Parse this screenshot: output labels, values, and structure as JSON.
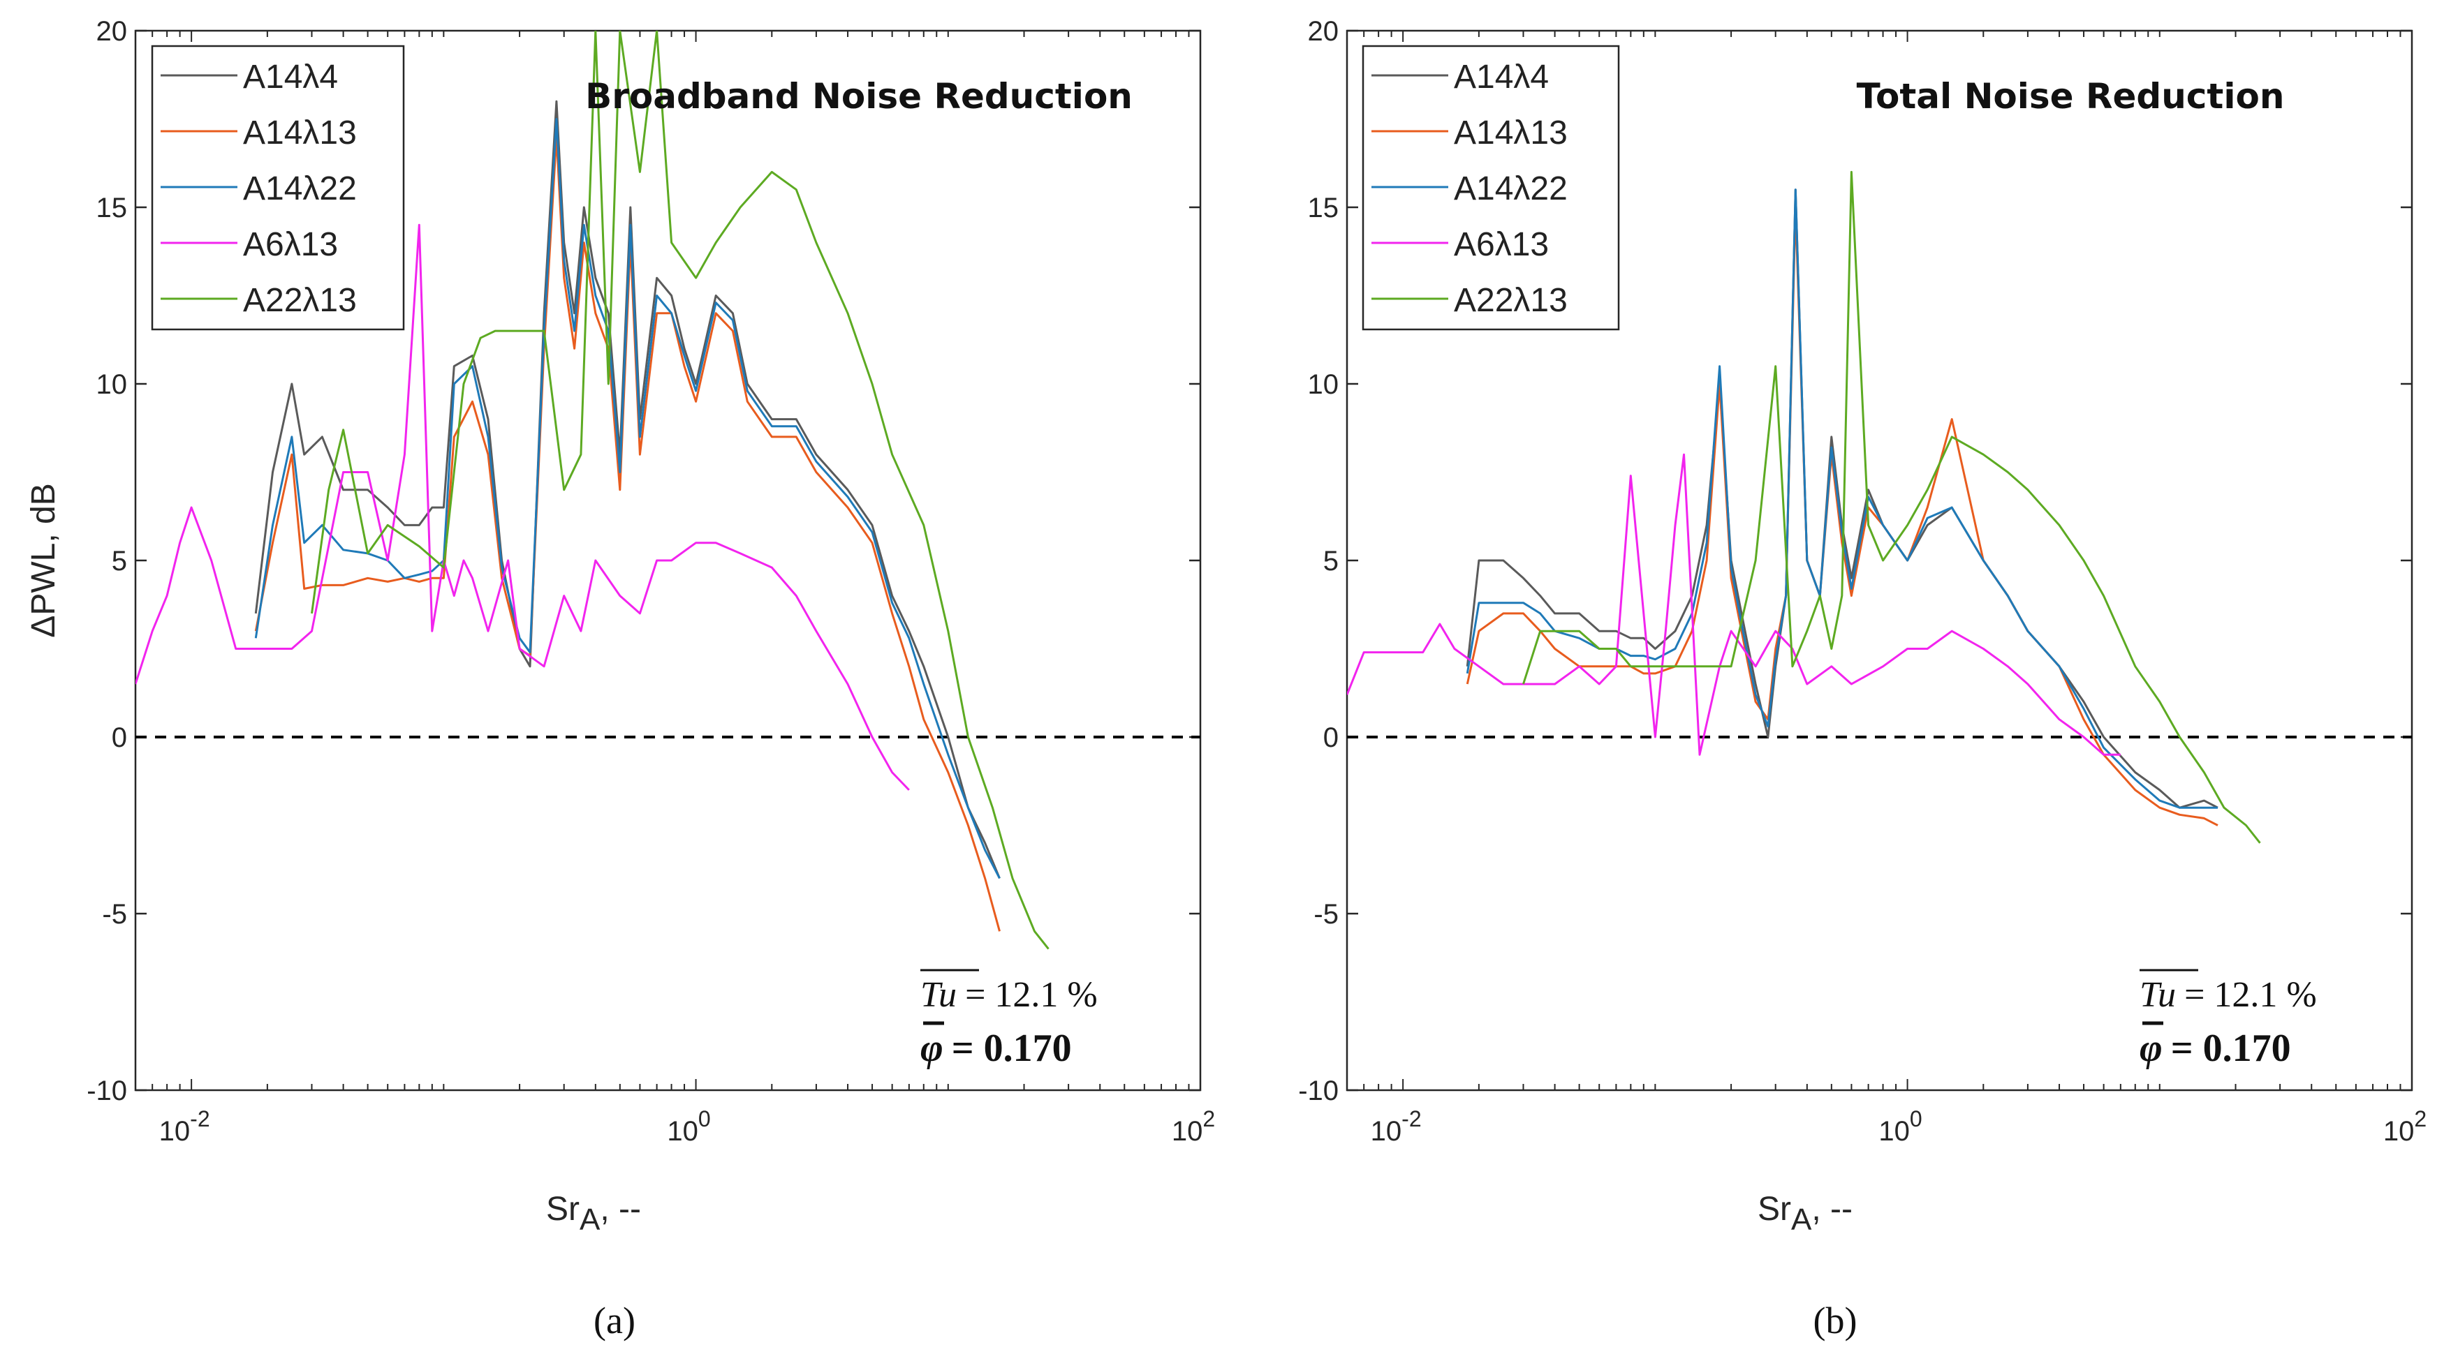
{
  "chart_data": [
    {
      "type": "line",
      "panel": "a",
      "title": "Broadband Noise Reduction",
      "caption": "(a)",
      "xlabel": "Sr",
      "xlabel_sub": "A",
      "xlabel_suffix": ", --",
      "ylabel": "ΔPWL, dB",
      "xscale": "log",
      "xlim": [
        0.006,
        100
      ],
      "ylim": [
        -10,
        20
      ],
      "yticks": [
        -10,
        -5,
        0,
        5,
        10,
        15,
        20
      ],
      "ytick_labels": [
        "-10",
        "-5",
        "0",
        "5",
        "10",
        "15",
        "20"
      ],
      "xticks": [
        {
          "base": "10",
          "exp": "-2",
          "value": 0.01
        },
        {
          "base": "10",
          "exp": "0",
          "value": 1
        },
        {
          "base": "10",
          "exp": "2",
          "value": 100
        }
      ],
      "reference_line": {
        "y": 0,
        "style": "dashed"
      },
      "legend_position": "top-left",
      "annotation": {
        "tu_symbol": "Tu",
        "tu_value": "= 12.1 %",
        "phi_symbol": "φ",
        "phi_value": "= 0.170"
      },
      "series": [
        {
          "name": "A14λ4",
          "color": "#5a5a5a",
          "x": [
            0.018,
            0.021,
            0.025,
            0.028,
            0.033,
            0.04,
            0.05,
            0.06,
            0.07,
            0.08,
            0.09,
            0.1,
            0.11,
            0.13,
            0.15,
            0.17,
            0.2,
            0.22,
            0.25,
            0.28,
            0.3,
            0.33,
            0.36,
            0.4,
            0.45,
            0.5,
            0.55,
            0.6,
            0.7,
            0.8,
            0.9,
            1.0,
            1.2,
            1.4,
            1.6,
            2.0,
            2.5,
            3.0,
            4.0,
            5.0,
            6.0,
            7.0,
            8.0,
            10.0,
            12.0,
            14.0,
            16.0
          ],
          "y": [
            3.5,
            7.5,
            10,
            8,
            8.5,
            7,
            7,
            6.5,
            6,
            6,
            6.5,
            6.5,
            10.5,
            10.8,
            9,
            5,
            2.5,
            2,
            12,
            18,
            14,
            12,
            15,
            13,
            12,
            8,
            15,
            9,
            13,
            12.5,
            11,
            10,
            12.5,
            12,
            10,
            9,
            9,
            8,
            7,
            6,
            4,
            3,
            2,
            0,
            -2,
            -3,
            -4
          ]
        },
        {
          "name": "A14λ13",
          "color": "#e85c1e",
          "x": [
            0.018,
            0.021,
            0.025,
            0.028,
            0.033,
            0.04,
            0.05,
            0.06,
            0.07,
            0.08,
            0.09,
            0.1,
            0.11,
            0.13,
            0.15,
            0.17,
            0.2,
            0.22,
            0.25,
            0.28,
            0.3,
            0.33,
            0.36,
            0.4,
            0.45,
            0.5,
            0.55,
            0.6,
            0.7,
            0.8,
            0.9,
            1.0,
            1.2,
            1.4,
            1.6,
            2.0,
            2.5,
            3.0,
            4.0,
            5.0,
            6.0,
            7.0,
            8.0,
            10.0,
            12.0,
            14.0,
            16.0
          ],
          "y": [
            3,
            5.5,
            8,
            4.2,
            4.3,
            4.3,
            4.5,
            4.4,
            4.5,
            4.4,
            4.5,
            4.5,
            8.5,
            9.5,
            8,
            4.5,
            2.5,
            2.3,
            11,
            17,
            13,
            11,
            14,
            12,
            11,
            7,
            14,
            8,
            12,
            12,
            10.5,
            9.5,
            12,
            11.5,
            9.5,
            8.5,
            8.5,
            7.5,
            6.5,
            5.5,
            3.5,
            2,
            0.5,
            -1,
            -2.5,
            -4,
            -5.5
          ]
        },
        {
          "name": "A14λ22",
          "color": "#1f7ab8",
          "x": [
            0.018,
            0.021,
            0.025,
            0.028,
            0.033,
            0.04,
            0.05,
            0.06,
            0.07,
            0.08,
            0.09,
            0.1,
            0.11,
            0.13,
            0.15,
            0.17,
            0.2,
            0.22,
            0.25,
            0.28,
            0.3,
            0.33,
            0.36,
            0.4,
            0.45,
            0.5,
            0.55,
            0.6,
            0.7,
            0.8,
            0.9,
            1.0,
            1.2,
            1.4,
            1.6,
            2.0,
            2.5,
            3.0,
            4.0,
            5.0,
            6.0,
            7.0,
            8.0,
            10.0,
            12.0,
            14.0,
            16.0
          ],
          "y": [
            2.8,
            6,
            8.5,
            5.5,
            6,
            5.3,
            5.2,
            5,
            4.5,
            4.6,
            4.7,
            5,
            10,
            10.5,
            8.5,
            4.8,
            2.8,
            2.4,
            11.5,
            17.5,
            13.5,
            11.5,
            14.5,
            12.5,
            11.5,
            7.5,
            14.5,
            8.5,
            12.5,
            12,
            10.8,
            9.8,
            12.3,
            11.8,
            9.8,
            8.8,
            8.8,
            7.8,
            6.8,
            5.8,
            3.8,
            2.8,
            1.5,
            -0.5,
            -2,
            -3.2,
            -4
          ]
        },
        {
          "name": "A6λ13",
          "color": "#f224ee",
          "x": [
            0.006,
            0.007,
            0.008,
            0.009,
            0.01,
            0.012,
            0.015,
            0.02,
            0.025,
            0.03,
            0.04,
            0.05,
            0.06,
            0.07,
            0.08,
            0.09,
            0.1,
            0.11,
            0.12,
            0.13,
            0.15,
            0.18,
            0.2,
            0.25,
            0.3,
            0.35,
            0.4,
            0.5,
            0.6,
            0.7,
            0.8,
            1.0,
            1.2,
            1.5,
            2.0,
            2.5,
            3.0,
            4.0,
            5.0,
            6.0,
            7.0
          ],
          "y": [
            1.5,
            3,
            4,
            5.5,
            6.5,
            5,
            2.5,
            2.5,
            2.5,
            3,
            7.5,
            7.5,
            5,
            8,
            14.5,
            3,
            5,
            4,
            5,
            4.5,
            3,
            5,
            2.5,
            2,
            4,
            3,
            5,
            4,
            3.5,
            5,
            5,
            5.5,
            5.5,
            5.2,
            4.8,
            4,
            3,
            1.5,
            0,
            -1,
            -1.5
          ]
        },
        {
          "name": "A22λ13",
          "color": "#5daa22",
          "x": [
            0.03,
            0.035,
            0.04,
            0.05,
            0.06,
            0.08,
            0.1,
            0.12,
            0.14,
            0.16,
            0.2,
            0.25,
            0.3,
            0.35,
            0.4,
            0.45,
            0.5,
            0.6,
            0.7,
            0.8,
            1.0,
            1.2,
            1.5,
            2.0,
            2.5,
            3.0,
            4.0,
            5.0,
            6.0,
            8.0,
            10.0,
            12.0,
            15.0,
            18.0,
            22.0,
            25.0
          ],
          "y": [
            3.5,
            7,
            8.7,
            5.2,
            6,
            5.4,
            4.8,
            10,
            11.3,
            11.5,
            11.5,
            11.5,
            7,
            8,
            20,
            10,
            20,
            16,
            20,
            14,
            13,
            14,
            15,
            16,
            15.5,
            14,
            12,
            10,
            8,
            6,
            3,
            0,
            -2,
            -4,
            -5.5,
            -6
          ]
        }
      ]
    },
    {
      "type": "line",
      "panel": "b",
      "title": "Total Noise Reduction",
      "caption": "(b)",
      "xlabel": "Sr",
      "xlabel_sub": "A",
      "xlabel_suffix": ", --",
      "ylabel": "",
      "xscale": "log",
      "xlim": [
        0.006,
        100
      ],
      "ylim": [
        -10,
        20
      ],
      "yticks": [
        -10,
        -5,
        0,
        5,
        10,
        15,
        20
      ],
      "ytick_labels": [
        "-10",
        "-5",
        "0",
        "5",
        "10",
        "15",
        "20"
      ],
      "xticks": [
        {
          "base": "10",
          "exp": "-2",
          "value": 0.01
        },
        {
          "base": "10",
          "exp": "0",
          "value": 1
        },
        {
          "base": "10",
          "exp": "2",
          "value": 100
        }
      ],
      "reference_line": {
        "y": 0,
        "style": "dashed"
      },
      "legend_position": "top-left",
      "annotation": {
        "tu_symbol": "Tu",
        "tu_value": "= 12.1 %",
        "phi_symbol": "φ",
        "phi_value": "= 0.170"
      },
      "series": [
        {
          "name": "A14λ4",
          "color": "#5a5a5a",
          "x": [
            0.018,
            0.02,
            0.025,
            0.03,
            0.035,
            0.04,
            0.05,
            0.06,
            0.07,
            0.08,
            0.09,
            0.1,
            0.12,
            0.14,
            0.16,
            0.18,
            0.2,
            0.22,
            0.25,
            0.28,
            0.3,
            0.33,
            0.36,
            0.4,
            0.45,
            0.5,
            0.55,
            0.6,
            0.7,
            0.8,
            1.0,
            1.2,
            1.5,
            2.0,
            2.5,
            3.0,
            4.0,
            5.0,
            6.0,
            8.0,
            10.0,
            12.0,
            15.0,
            17.0
          ],
          "y": [
            2,
            5,
            5,
            4.5,
            4,
            3.5,
            3.5,
            3,
            3,
            2.8,
            2.8,
            2.5,
            3,
            4,
            6,
            10,
            5,
            3.5,
            1.5,
            0,
            2,
            4,
            15.5,
            5,
            4,
            8.5,
            6,
            4.5,
            7,
            6,
            5,
            6,
            6.5,
            5,
            4,
            3,
            2,
            1,
            0,
            -1,
            -1.5,
            -2,
            -1.8,
            -2
          ]
        },
        {
          "name": "A14λ13",
          "color": "#e85c1e",
          "x": [
            0.018,
            0.02,
            0.025,
            0.03,
            0.035,
            0.04,
            0.05,
            0.06,
            0.07,
            0.08,
            0.09,
            0.1,
            0.12,
            0.14,
            0.16,
            0.18,
            0.2,
            0.22,
            0.25,
            0.28,
            0.3,
            0.33,
            0.36,
            0.4,
            0.45,
            0.5,
            0.55,
            0.6,
            0.7,
            0.8,
            1.0,
            1.2,
            1.5,
            2.0,
            2.5,
            3.0,
            4.0,
            5.0,
            6.0,
            8.0,
            10.0,
            12.0,
            15.0,
            17.0
          ],
          "y": [
            1.5,
            3,
            3.5,
            3.5,
            3,
            2.5,
            2,
            2,
            2,
            2,
            1.8,
            1.8,
            2,
            3,
            5,
            10,
            4.5,
            3,
            1,
            0.5,
            2.5,
            4,
            15,
            5,
            4,
            8,
            5.5,
            4,
            6.5,
            6,
            5,
            6.5,
            9,
            5,
            4,
            3,
            2,
            0.5,
            -0.5,
            -1.5,
            -2,
            -2.2,
            -2.3,
            -2.5
          ]
        },
        {
          "name": "A14λ22",
          "color": "#1f7ab8",
          "x": [
            0.018,
            0.02,
            0.025,
            0.03,
            0.035,
            0.04,
            0.05,
            0.06,
            0.07,
            0.08,
            0.09,
            0.1,
            0.12,
            0.14,
            0.16,
            0.18,
            0.2,
            0.22,
            0.25,
            0.28,
            0.3,
            0.33,
            0.36,
            0.4,
            0.45,
            0.5,
            0.55,
            0.6,
            0.7,
            0.8,
            1.0,
            1.2,
            1.5,
            2.0,
            2.5,
            3.0,
            4.0,
            5.0,
            6.0,
            8.0,
            10.0,
            12.0,
            15.0,
            17.0
          ],
          "y": [
            1.8,
            3.8,
            3.8,
            3.8,
            3.5,
            3,
            2.8,
            2.5,
            2.5,
            2.3,
            2.3,
            2.2,
            2.5,
            3.5,
            5.5,
            10.5,
            4.8,
            3.2,
            1.2,
            0.3,
            2.2,
            4,
            15.5,
            5,
            4,
            8.2,
            5.8,
            4.2,
            6.8,
            6,
            5,
            6.2,
            6.5,
            5,
            4,
            3,
            2,
            0.8,
            -0.3,
            -1.2,
            -1.8,
            -2,
            -2,
            -2
          ]
        },
        {
          "name": "A6λ13",
          "color": "#f224ee",
          "x": [
            0.006,
            0.007,
            0.008,
            0.01,
            0.012,
            0.014,
            0.016,
            0.02,
            0.025,
            0.03,
            0.04,
            0.05,
            0.06,
            0.07,
            0.08,
            0.1,
            0.11,
            0.12,
            0.13,
            0.15,
            0.18,
            0.2,
            0.25,
            0.3,
            0.35,
            0.4,
            0.5,
            0.6,
            0.8,
            1.0,
            1.2,
            1.5,
            2.0,
            2.5,
            3.0,
            4.0,
            5.0,
            6.0,
            7.0
          ],
          "y": [
            1.2,
            2.4,
            2.4,
            2.4,
            2.4,
            3.2,
            2.5,
            2,
            1.5,
            1.5,
            1.5,
            2,
            1.5,
            2,
            7.4,
            0,
            3,
            6,
            8,
            -0.5,
            2,
            3,
            2,
            3,
            2.5,
            1.5,
            2,
            1.5,
            2,
            2.5,
            2.5,
            3,
            2.5,
            2,
            1.5,
            0.5,
            0,
            -0.5,
            -0.5
          ]
        },
        {
          "name": "A22λ13",
          "color": "#5daa22",
          "x": [
            0.03,
            0.035,
            0.04,
            0.05,
            0.06,
            0.07,
            0.08,
            0.1,
            0.12,
            0.15,
            0.2,
            0.25,
            0.3,
            0.35,
            0.4,
            0.45,
            0.5,
            0.55,
            0.6,
            0.7,
            0.8,
            1.0,
            1.2,
            1.5,
            2.0,
            2.5,
            3.0,
            4.0,
            5.0,
            6.0,
            8.0,
            10.0,
            12.0,
            15.0,
            18.0,
            22.0,
            25.0
          ],
          "y": [
            1.5,
            3,
            3,
            3,
            2.5,
            2.5,
            2,
            2,
            2,
            2,
            2,
            5,
            10.5,
            2,
            3,
            4,
            2.5,
            4,
            16,
            6,
            5,
            6,
            7,
            8.5,
            8,
            7.5,
            7,
            6,
            5,
            4,
            2,
            1,
            0,
            -1,
            -2,
            -2.5,
            -3
          ]
        }
      ]
    }
  ]
}
